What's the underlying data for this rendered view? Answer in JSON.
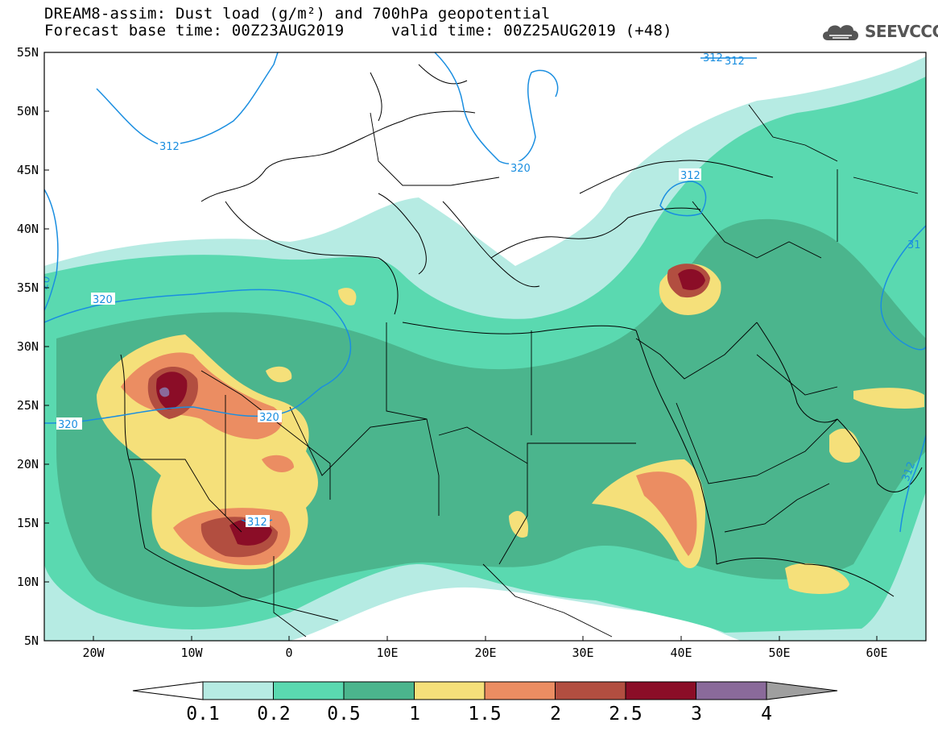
{
  "title": {
    "line1": "DREAM8-assim: Dust load (g/m²) and 700hPa geopotential",
    "line2": "Forecast base time: 00Z23AUG2019     valid time: 00Z25AUG2019 (+48)"
  },
  "logo": {
    "text": "SEEVCCC",
    "icon": "cloud-logo-icon"
  },
  "map": {
    "lon_range": [
      -25,
      65
    ],
    "lat_range": [
      5,
      55
    ],
    "lat_ticks": [
      "55N",
      "50N",
      "45N",
      "40N",
      "35N",
      "30N",
      "25N",
      "20N",
      "15N",
      "10N",
      "5N"
    ],
    "lon_ticks": [
      "20W",
      "10W",
      "0",
      "10E",
      "20E",
      "30E",
      "40E",
      "50E",
      "60E"
    ],
    "contour_labels": [
      "312",
      "312",
      "312",
      "320",
      "312",
      "320",
      "320",
      "320",
      "312",
      "312",
      "31",
      "20",
      "312"
    ]
  },
  "colorbar": {
    "labels": [
      "0.1",
      "0.2",
      "0.5",
      "1",
      "1.5",
      "2",
      "2.5",
      "3",
      "4"
    ],
    "colors": [
      "#b6ebe3",
      "#5ad9b0",
      "#4bb58d",
      "#f5e07a",
      "#eb8d62",
      "#b24e40",
      "#8b0d27",
      "#8a6a9a",
      "#9f9f9f"
    ],
    "under_color": "#ffffff"
  },
  "colors": {
    "contour": "#1a8ee0",
    "coast": "#000000"
  }
}
